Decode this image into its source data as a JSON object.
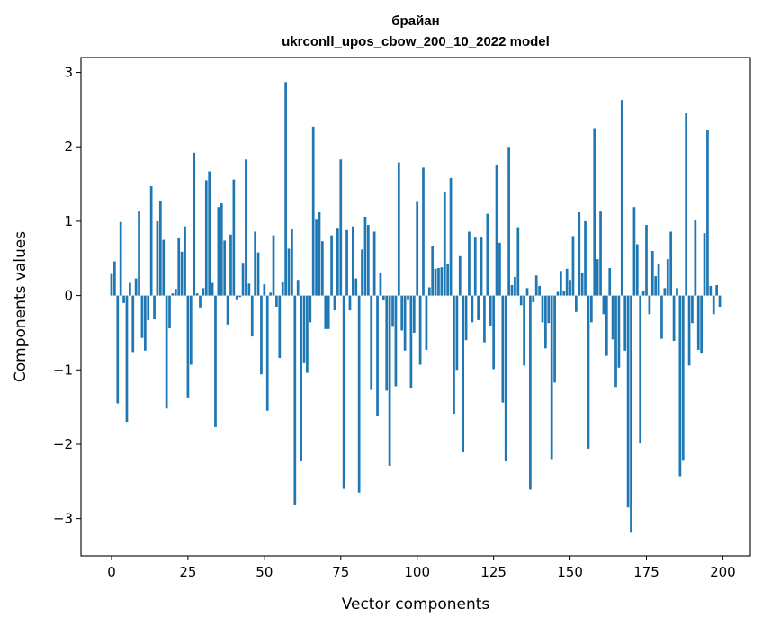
{
  "chart_data": {
    "type": "bar",
    "title": "брайан",
    "subtitle": "ukrconll_upos_cbow_200_10_2022 model",
    "xlabel": "Vector components",
    "ylabel": "Components values",
    "xlim": [
      -10,
      209
    ],
    "ylim": [
      -3.5,
      3.2
    ],
    "xticks": [
      0,
      25,
      50,
      75,
      100,
      125,
      150,
      175,
      200
    ],
    "yticks": [
      -3,
      -2,
      -1,
      0,
      1,
      2,
      3
    ],
    "ytick_labels": [
      "−3",
      "−2",
      "−1",
      "0",
      "1",
      "2",
      "3"
    ],
    "bar_color": "#1f77b4",
    "values": [
      0.29,
      0.46,
      -1.45,
      0.99,
      -0.1,
      -1.7,
      0.17,
      -0.76,
      0.23,
      1.13,
      -0.57,
      -0.74,
      -0.33,
      1.47,
      -0.32,
      1.0,
      1.27,
      0.75,
      -1.52,
      -0.44,
      0.03,
      0.09,
      0.77,
      0.59,
      0.93,
      -1.37,
      -0.93,
      1.92,
      0.03,
      -0.16,
      0.1,
      1.55,
      1.67,
      0.17,
      -1.77,
      1.19,
      1.24,
      0.74,
      -0.39,
      0.82,
      1.56,
      -0.05,
      -0.02,
      0.44,
      1.83,
      0.16,
      -0.55,
      0.86,
      0.58,
      -1.06,
      0.15,
      -1.55,
      0.04,
      0.81,
      -0.15,
      -0.84,
      0.19,
      2.87,
      0.63,
      0.89,
      -2.81,
      0.21,
      -2.23,
      -0.91,
      -1.04,
      -0.36,
      2.27,
      1.02,
      1.12,
      0.73,
      -0.45,
      -0.45,
      0.81,
      -0.2,
      0.9,
      1.83,
      -2.6,
      0.88,
      -0.2,
      0.93,
      0.23,
      -2.65,
      0.62,
      1.06,
      0.95,
      -1.27,
      0.86,
      -1.62,
      0.3,
      -0.06,
      -1.28,
      -2.29,
      -0.42,
      -1.22,
      1.79,
      -0.47,
      -0.74,
      -0.05,
      -1.24,
      -0.5,
      1.26,
      -0.93,
      1.72,
      -0.73,
      0.11,
      0.67,
      0.36,
      0.37,
      0.38,
      1.39,
      0.42,
      1.58,
      -1.59,
      -1.0,
      0.53,
      -2.1,
      -0.6,
      0.86,
      -0.36,
      0.78,
      -0.33,
      0.78,
      -0.63,
      1.1,
      -0.41,
      -0.99,
      1.76,
      0.71,
      -1.44,
      -2.22,
      2.0,
      0.14,
      0.25,
      0.92,
      -0.13,
      -0.94,
      0.1,
      -2.61,
      -0.09,
      0.27,
      0.13,
      -0.36,
      -0.71,
      -0.37,
      -2.2,
      -1.17,
      0.05,
      0.33,
      0.06,
      0.36,
      0.21,
      0.8,
      -0.22,
      1.12,
      0.31,
      1.0,
      -2.06,
      -0.36,
      2.25,
      0.49,
      1.13,
      -0.25,
      -0.81,
      0.37,
      -0.59,
      -1.23,
      -0.97,
      2.63,
      -0.74,
      -2.85,
      -3.19,
      1.19,
      0.69,
      -1.99,
      0.06,
      0.95,
      -0.25,
      0.6,
      0.26,
      0.43,
      -0.58,
      0.1,
      0.49,
      0.86,
      -0.61,
      0.1,
      -2.43,
      -2.21,
      2.45,
      -0.94,
      -0.37,
      1.01,
      -0.73,
      -0.78,
      0.84,
      2.22,
      0.13,
      -0.25,
      0.14,
      -0.15
    ]
  }
}
